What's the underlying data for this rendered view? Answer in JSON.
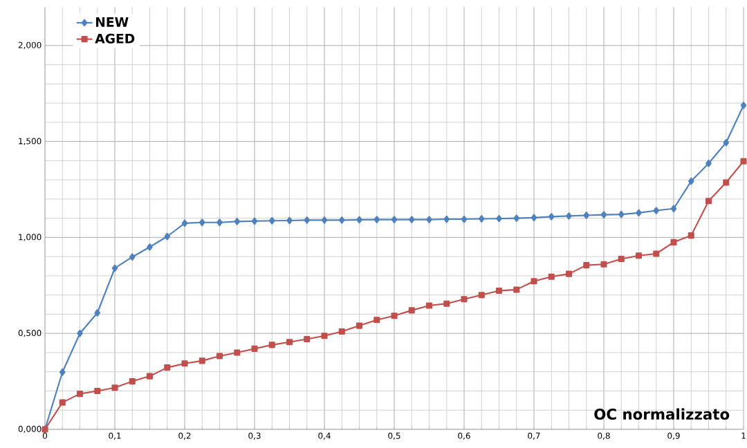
{
  "chart_data": {
    "type": "line",
    "xlabel": "OC normalizzato",
    "x": [
      0,
      0.025,
      0.05,
      0.075,
      0.1,
      0.125,
      0.15,
      0.175,
      0.2,
      0.225,
      0.25,
      0.275,
      0.3,
      0.325,
      0.35,
      0.375,
      0.4,
      0.425,
      0.45,
      0.475,
      0.5,
      0.525,
      0.55,
      0.575,
      0.6,
      0.625,
      0.65,
      0.675,
      0.7,
      0.725,
      0.75,
      0.775,
      0.8,
      0.825,
      0.85,
      0.875,
      0.9,
      0.925,
      0.95,
      0.975,
      1
    ],
    "series": [
      {
        "name": "NEW",
        "color": "#4f81bd",
        "marker": "diamond",
        "values": [
          0,
          0.298,
          0.5,
          0.607,
          0.84,
          0.898,
          0.95,
          1.005,
          1.074,
          1.078,
          1.078,
          1.083,
          1.085,
          1.087,
          1.088,
          1.09,
          1.09,
          1.09,
          1.092,
          1.093,
          1.093,
          1.093,
          1.093,
          1.095,
          1.095,
          1.097,
          1.098,
          1.1,
          1.103,
          1.108,
          1.112,
          1.115,
          1.118,
          1.12,
          1.128,
          1.14,
          1.15,
          1.293,
          1.386,
          1.494,
          1.688
        ]
      },
      {
        "name": "AGED",
        "color": "#c0504d",
        "marker": "square",
        "values": [
          0,
          0.14,
          0.185,
          0.2,
          0.217,
          0.25,
          0.277,
          0.322,
          0.343,
          0.357,
          0.382,
          0.4,
          0.42,
          0.44,
          0.455,
          0.47,
          0.487,
          0.51,
          0.54,
          0.57,
          0.592,
          0.62,
          0.645,
          0.655,
          0.678,
          0.7,
          0.722,
          0.728,
          0.772,
          0.795,
          0.81,
          0.855,
          0.86,
          0.888,
          0.905,
          0.915,
          0.975,
          1.01,
          1.19,
          1.286,
          1.397
        ]
      }
    ],
    "xlim": [
      0,
      1
    ],
    "ylim": [
      0,
      2.2
    ],
    "xticks": [
      0,
      {
        "value": 0.1,
        "label": "0,1"
      },
      {
        "value": 0.2,
        "label": "0,2"
      },
      {
        "value": 0.3,
        "label": "0,3"
      },
      {
        "value": 0.4,
        "label": "0,4"
      },
      {
        "value": 0.5,
        "label": "0,5"
      },
      {
        "value": 0.6,
        "label": "0,6"
      },
      {
        "value": 0.7,
        "label": "0,7"
      },
      {
        "value": 0.8,
        "label": "0,8"
      },
      {
        "value": 0.9,
        "label": "0,9"
      },
      1
    ],
    "yticks": [
      {
        "value": 0,
        "label": "0,000"
      },
      {
        "value": 0.5,
        "label": "0,500"
      },
      {
        "value": 1,
        "label": "1,000"
      },
      {
        "value": 1.5,
        "label": "1,500"
      },
      {
        "value": 2,
        "label": "2,000"
      }
    ],
    "grid": true,
    "legend": "top left",
    "line_style": "solid"
  }
}
